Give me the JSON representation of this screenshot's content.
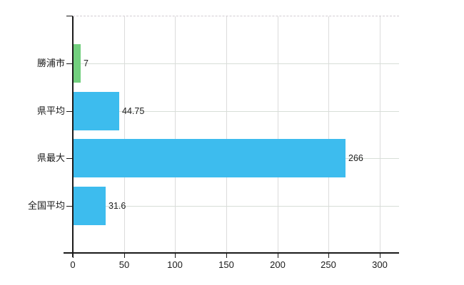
{
  "chart_data": {
    "type": "bar",
    "orientation": "horizontal",
    "title": "",
    "categories": [
      "勝浦市",
      "県平均",
      "県最大",
      "全国平均"
    ],
    "values": [
      7,
      44.75,
      266,
      31.6
    ],
    "value_labels": [
      "7",
      "44.75",
      "266",
      "31.6"
    ],
    "bar_colors": [
      "#72cf7e",
      "#3dbcee",
      "#3dbcee",
      "#3dbcee"
    ],
    "x_tick_labels": [
      "0",
      "50",
      "100",
      "150",
      "200",
      "250",
      "300"
    ],
    "x_tick_values": [
      0,
      50,
      100,
      150,
      200,
      250,
      300
    ],
    "xlim": [
      0,
      318
    ],
    "xlabel": "",
    "ylabel": "",
    "grid": true,
    "legend_position": "none"
  },
  "colors": {
    "background": "#ffffff",
    "axis": "#1a1a1a",
    "grid": "#dcdcdc",
    "text": "#1a1a1a",
    "bar_blue": "#3dbcee",
    "bar_green": "#72cf7e"
  }
}
